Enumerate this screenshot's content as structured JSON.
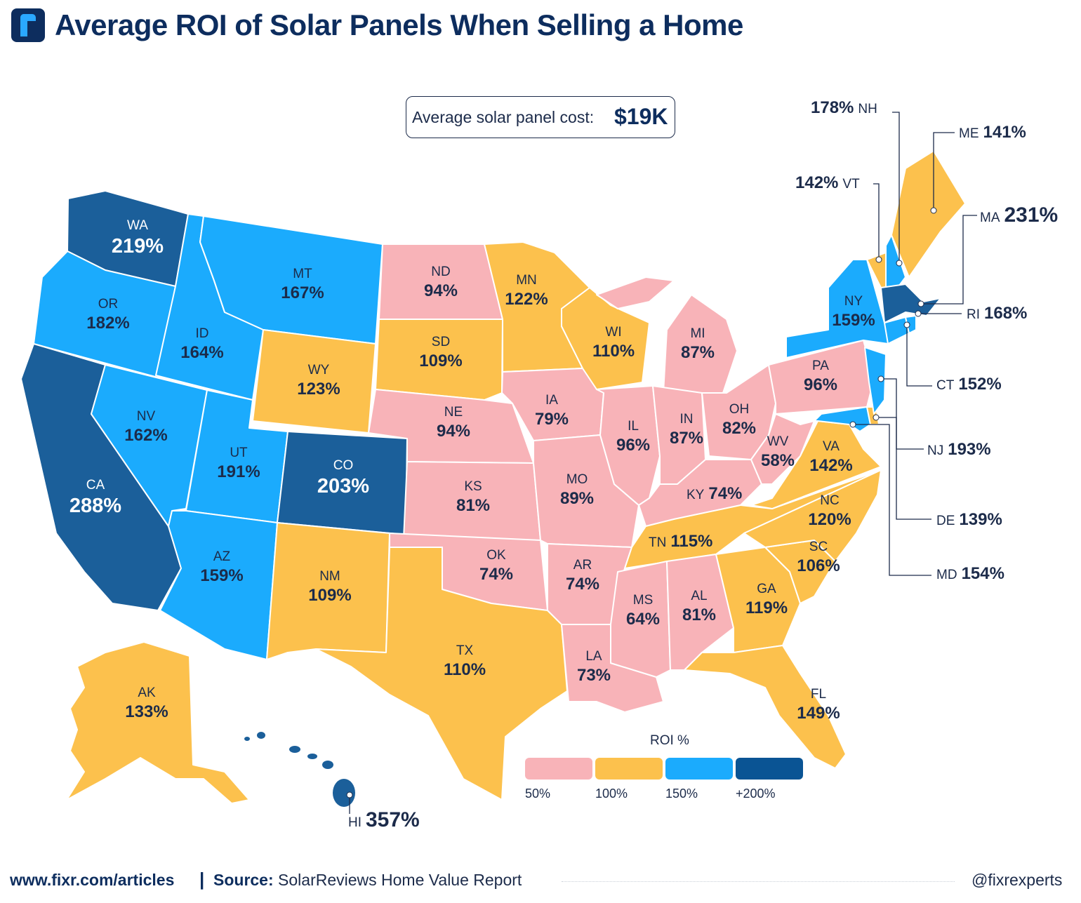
{
  "title": "Average ROI of Solar Panels When Selling a Home",
  "cost": {
    "label": "Average solar panel cost:",
    "value": "$19K"
  },
  "colors": {
    "under_100": "#f8b3b8",
    "100_to_150": "#fcc14d",
    "150_to_200": "#1babfd",
    "over_200": "#1b5f9a",
    "ink": "#1c2b4a",
    "brand": "#0d2d5e"
  },
  "states": {
    "WA": {
      "abbr": "WA",
      "roi": "219%"
    },
    "OR": {
      "abbr": "OR",
      "roi": "182%"
    },
    "CA": {
      "abbr": "CA",
      "roi": "288%"
    },
    "NV": {
      "abbr": "NV",
      "roi": "162%"
    },
    "ID": {
      "abbr": "ID",
      "roi": "164%"
    },
    "MT": {
      "abbr": "MT",
      "roi": "167%"
    },
    "WY": {
      "abbr": "WY",
      "roi": "123%"
    },
    "UT": {
      "abbr": "UT",
      "roi": "191%"
    },
    "CO": {
      "abbr": "CO",
      "roi": "203%"
    },
    "AZ": {
      "abbr": "AZ",
      "roi": "159%"
    },
    "NM": {
      "abbr": "NM",
      "roi": "109%"
    },
    "ND": {
      "abbr": "ND",
      "roi": "94%"
    },
    "SD": {
      "abbr": "SD",
      "roi": "109%"
    },
    "NE": {
      "abbr": "NE",
      "roi": "94%"
    },
    "KS": {
      "abbr": "KS",
      "roi": "81%"
    },
    "OK": {
      "abbr": "OK",
      "roi": "74%"
    },
    "TX": {
      "abbr": "TX",
      "roi": "110%"
    },
    "MN": {
      "abbr": "MN",
      "roi": "122%"
    },
    "IA": {
      "abbr": "IA",
      "roi": "79%"
    },
    "MO": {
      "abbr": "MO",
      "roi": "89%"
    },
    "AR": {
      "abbr": "AR",
      "roi": "74%"
    },
    "LA": {
      "abbr": "LA",
      "roi": "73%"
    },
    "WI": {
      "abbr": "WI",
      "roi": "110%"
    },
    "IL": {
      "abbr": "IL",
      "roi": "96%"
    },
    "MI": {
      "abbr": "MI",
      "roi": "87%"
    },
    "IN": {
      "abbr": "IN",
      "roi": "87%"
    },
    "OH": {
      "abbr": "OH",
      "roi": "82%"
    },
    "KY": {
      "abbr": "KY",
      "roi": "74%"
    },
    "TN": {
      "abbr": "TN",
      "roi": "115%"
    },
    "MS": {
      "abbr": "MS",
      "roi": "64%"
    },
    "AL": {
      "abbr": "AL",
      "roi": "81%"
    },
    "GA": {
      "abbr": "GA",
      "roi": "119%"
    },
    "FL": {
      "abbr": "FL",
      "roi": "149%"
    },
    "SC": {
      "abbr": "SC",
      "roi": "106%"
    },
    "NC": {
      "abbr": "NC",
      "roi": "120%"
    },
    "VA": {
      "abbr": "VA",
      "roi": "142%"
    },
    "WV": {
      "abbr": "WV",
      "roi": "58%"
    },
    "PA": {
      "abbr": "PA",
      "roi": "96%"
    },
    "NY": {
      "abbr": "NY",
      "roi": "159%"
    },
    "AK": {
      "abbr": "AK",
      "roi": "133%"
    },
    "HI": {
      "abbr": "HI",
      "roi": "357%"
    },
    "NH": {
      "abbr": "NH",
      "roi": "178%"
    },
    "VT": {
      "abbr": "VT",
      "roi": "142%"
    },
    "ME": {
      "abbr": "ME",
      "roi": "141%"
    },
    "MA": {
      "abbr": "MA",
      "roi": "231%"
    },
    "RI": {
      "abbr": "RI",
      "roi": "168%"
    },
    "CT": {
      "abbr": "CT",
      "roi": "152%"
    },
    "NJ": {
      "abbr": "NJ",
      "roi": "193%"
    },
    "DE": {
      "abbr": "DE",
      "roi": "139%"
    },
    "MD": {
      "abbr": "MD",
      "roi": "154%"
    }
  },
  "legend": {
    "title": "ROI %",
    "ticks": [
      "50%",
      "100%",
      "150%",
      "+200%"
    ]
  },
  "footer": {
    "url": "www.fixr.com/articles",
    "sep": "|",
    "source_label": "Source:",
    "source": "SolarReviews Home Value Report",
    "handle": "@fixrexperts"
  }
}
